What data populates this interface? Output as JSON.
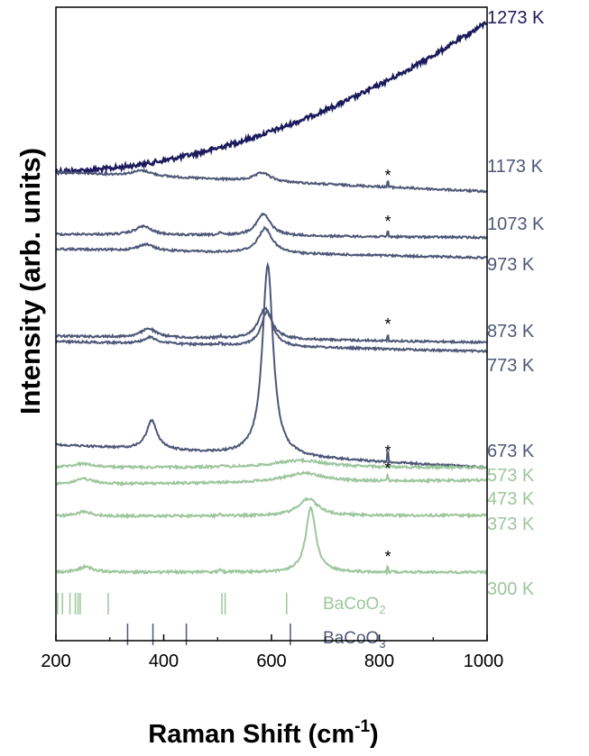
{
  "chart_data": {
    "type": "line",
    "xlabel": "Raman Shift (cm",
    "xlabel_sup": "-1",
    "xlabel_end": ")",
    "ylabel": "Intensity (arb. units)",
    "xlim": [
      200,
      1000
    ],
    "xticks": [
      200,
      400,
      600,
      800,
      1000
    ],
    "colors": {
      "dark": "#1c1a5c",
      "gray": "#4e5778",
      "green": "#9cc69c"
    },
    "star_symbol": "*",
    "series": [
      {
        "name": "1273 K",
        "color": "#1c1a5c",
        "base": 0,
        "slope": 0,
        "ramp": 1,
        "peaks": []
      },
      {
        "name": "1173 K",
        "color": "#4e5778",
        "base": 0.2,
        "slope": 0.02,
        "star": true,
        "peaks": [
          [
            360,
            0.05,
            22
          ],
          [
            583,
            0.08,
            18
          ]
        ]
      },
      {
        "name": "1073 K",
        "color": "#4e5778",
        "base": 0.05,
        "slope": 0.02,
        "star": true,
        "peaks": [
          [
            362,
            0.08,
            18
          ],
          [
            585,
            0.2,
            16
          ],
          [
            505,
            0.02,
            3
          ]
        ]
      },
      {
        "name": "973 K",
        "color": "#4e5778",
        "base": 0.08,
        "slope": 0,
        "peaks": [
          [
            367,
            0.06,
            18
          ],
          [
            588,
            0.23,
            16
          ]
        ]
      },
      {
        "name": "873 K",
        "color": "#4e5778",
        "base": 0.07,
        "slope": 0,
        "star": true,
        "peaks": [
          [
            372,
            0.1,
            16
          ],
          [
            588,
            0.34,
            15
          ],
          [
            505,
            0.02,
            3
          ],
          [
            412,
            0.01,
            3
          ]
        ]
      },
      {
        "name": "773 K",
        "color": "#4e5778",
        "base": 0.11,
        "slope": 0,
        "peaks": [
          [
            375,
            0.07,
            15
          ],
          [
            592,
            0.39,
            13
          ],
          [
            505,
            0.02,
            3
          ],
          [
            412,
            0.015,
            3
          ]
        ]
      },
      {
        "name": "673 K",
        "color": "#4e5778",
        "base": 0.11,
        "slope": 0,
        "star": true,
        "peaks": [
          [
            378,
            0.14,
            12
          ],
          [
            593,
            0.92,
            12
          ]
        ]
      },
      {
        "name": "573 K",
        "color": "#9cc69c",
        "base": 0.07,
        "slope": 0.07,
        "peaks": [
          [
            250,
            0.04,
            25
          ],
          [
            655,
            0.08,
            60
          ],
          [
            505,
            0.02,
            3
          ]
        ]
      },
      {
        "name": "473 K",
        "color": "#9cc69c",
        "base": 0.02,
        "slope": 0.07,
        "star": true,
        "peaks": [
          [
            252,
            0.06,
            22
          ],
          [
            660,
            0.1,
            45
          ]
        ]
      },
      {
        "name": "373 K",
        "color": "#9cc69c",
        "base": 0.04,
        "slope": 0.05,
        "peaks": [
          [
            252,
            0.05,
            18
          ],
          [
            668,
            0.19,
            22
          ],
          [
            505,
            0.02,
            3
          ]
        ]
      },
      {
        "name": "300 K",
        "color": "#9cc69c",
        "base": 0.03,
        "slope": 0.03,
        "star": true,
        "peaks": [
          [
            255,
            0.06,
            16
          ],
          [
            673,
            0.72,
            11
          ],
          [
            505,
            0.02,
            3
          ]
        ]
      }
    ],
    "reference_lines": [
      {
        "label": "BaCoO",
        "sub": "2",
        "color": "#9cc69c",
        "positions": [
          203,
          212,
          226,
          236,
          241,
          245,
          297,
          508,
          514,
          628
        ]
      },
      {
        "label": "BaCoO",
        "sub": "3",
        "color": "#4e5778",
        "positions": [
          333,
          380,
          442,
          635
        ]
      }
    ]
  }
}
